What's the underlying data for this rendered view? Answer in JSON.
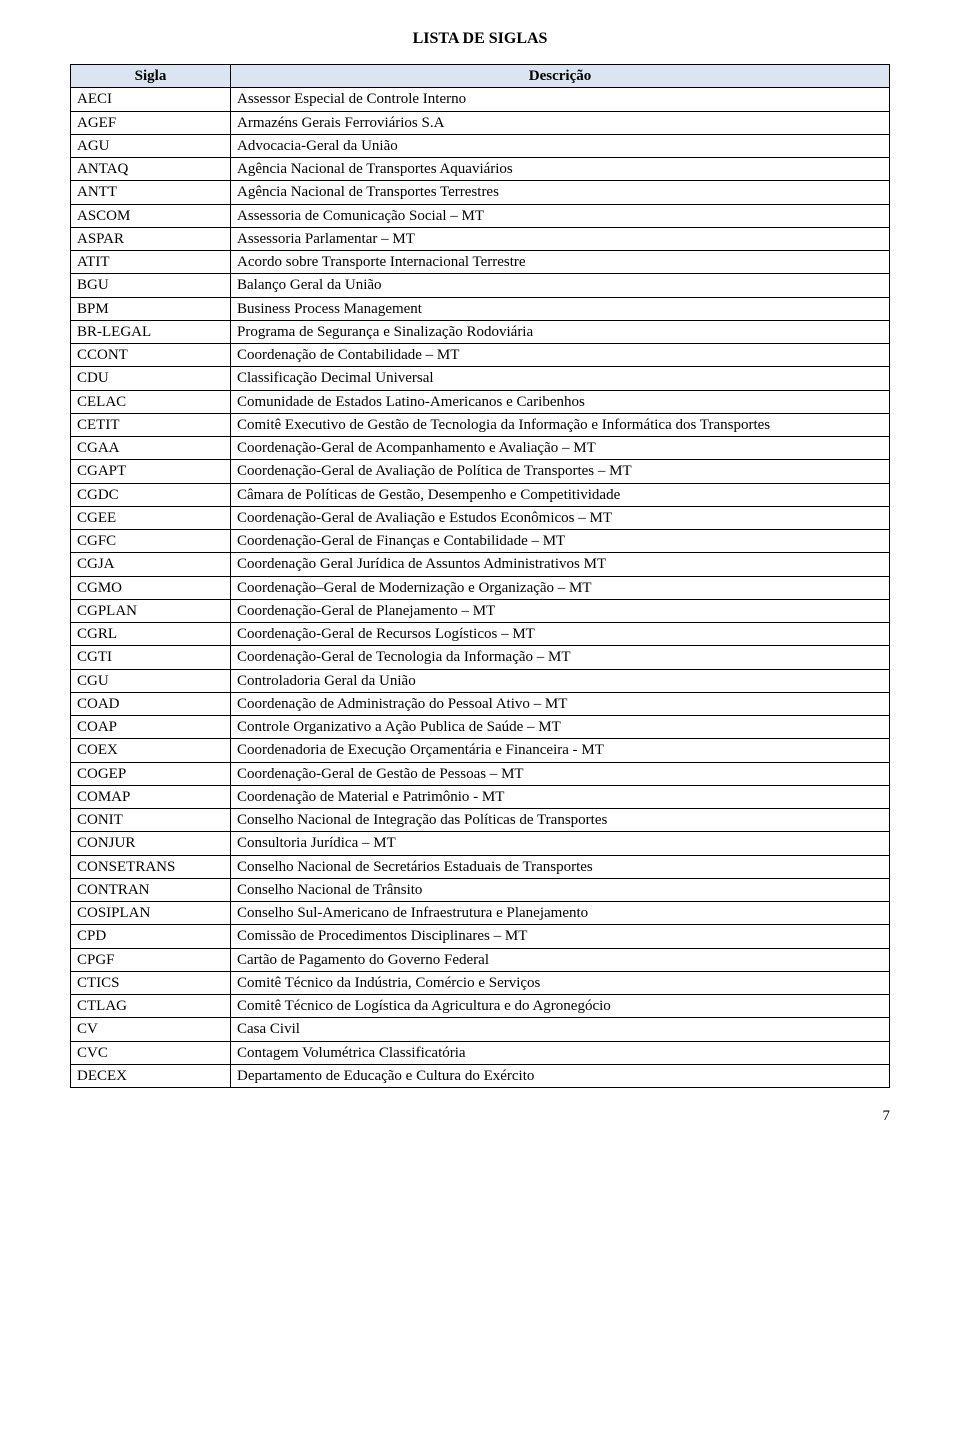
{
  "page_title": "LISTA DE SIGLAS",
  "headers": {
    "sigla": "Sigla",
    "descricao": "Descrição"
  },
  "page_number": "7",
  "rows": [
    {
      "s": "AECI",
      "d": "Assessor Especial de Controle Interno"
    },
    {
      "s": "AGEF",
      "d": "Armazéns Gerais Ferroviários S.A"
    },
    {
      "s": "AGU",
      "d": "Advocacia-Geral da União"
    },
    {
      "s": "ANTAQ",
      "d": "Agência Nacional de Transportes Aquaviários"
    },
    {
      "s": "ANTT",
      "d": "Agência Nacional de Transportes Terrestres"
    },
    {
      "s": "ASCOM",
      "d": "Assessoria de Comunicação Social – MT"
    },
    {
      "s": "ASPAR",
      "d": "Assessoria Parlamentar – MT"
    },
    {
      "s": "ATIT",
      "d": "Acordo sobre Transporte Internacional Terrestre"
    },
    {
      "s": "BGU",
      "d": "Balanço Geral da União"
    },
    {
      "s": "BPM",
      "d": "Business Process Management"
    },
    {
      "s": "BR-LEGAL",
      "d": "Programa de Segurança e Sinalização Rodoviária"
    },
    {
      "s": "CCONT",
      "d": "Coordenação de Contabilidade – MT"
    },
    {
      "s": "CDU",
      "d": "Classificação Decimal Universal"
    },
    {
      "s": "CELAC",
      "d": "Comunidade de Estados Latino-Americanos e Caribenhos"
    },
    {
      "s": "CETIT",
      "d": "Comitê Executivo de Gestão de Tecnologia da Informação e Informática dos Transportes"
    },
    {
      "s": "CGAA",
      "d": "Coordenação-Geral de Acompanhamento e Avaliação – MT"
    },
    {
      "s": "CGAPT",
      "d": "Coordenação-Geral de Avaliação de Política de Transportes – MT"
    },
    {
      "s": "CGDC",
      "d": "Câmara de Políticas de Gestão, Desempenho e Competitividade"
    },
    {
      "s": "CGEE",
      "d": "Coordenação-Geral de Avaliação e Estudos Econômicos – MT"
    },
    {
      "s": "CGFC",
      "d": "Coordenação-Geral de Finanças e Contabilidade – MT"
    },
    {
      "s": "CGJA",
      "d": "Coordenação Geral Jurídica de Assuntos Administrativos MT"
    },
    {
      "s": "CGMO",
      "d": "Coordenação–Geral de Modernização e Organização – MT"
    },
    {
      "s": "CGPLAN",
      "d": "Coordenação-Geral de Planejamento – MT"
    },
    {
      "s": "CGRL",
      "d": "Coordenação-Geral de Recursos Logísticos – MT"
    },
    {
      "s": "CGTI",
      "d": "Coordenação-Geral de Tecnologia da Informação – MT"
    },
    {
      "s": "CGU",
      "d": "Controladoria Geral da União"
    },
    {
      "s": "COAD",
      "d": "Coordenação de Administração do Pessoal Ativo – MT"
    },
    {
      "s": "COAP",
      "d": "Controle Organizativo a Ação Publica de Saúde – MT"
    },
    {
      "s": "COEX",
      "d": "Coordenadoria de Execução Orçamentária e Financeira - MT"
    },
    {
      "s": "COGEP",
      "d": "Coordenação-Geral de Gestão de Pessoas – MT"
    },
    {
      "s": "COMAP",
      "d": "Coordenação de Material e Patrimônio - MT"
    },
    {
      "s": "CONIT",
      "d": "Conselho Nacional de Integração das Políticas de Transportes"
    },
    {
      "s": "CONJUR",
      "d": "Consultoria Jurídica – MT"
    },
    {
      "s": "CONSETRANS",
      "d": "Conselho Nacional de Secretários Estaduais de Transportes"
    },
    {
      "s": "CONTRAN",
      "d": "Conselho Nacional de Trânsito"
    },
    {
      "s": "COSIPLAN",
      "d": "Conselho Sul-Americano de Infraestrutura e Planejamento"
    },
    {
      "s": "CPD",
      "d": "Comissão de Procedimentos Disciplinares – MT"
    },
    {
      "s": "CPGF",
      "d": "Cartão de Pagamento do Governo Federal"
    },
    {
      "s": "CTICS",
      "d": "Comitê Técnico da Indústria, Comércio e Serviços"
    },
    {
      "s": "CTLAG",
      "d": "Comitê Técnico de Logística da Agricultura e do Agronegócio"
    },
    {
      "s": "CV",
      "d": "Casa Civil"
    },
    {
      "s": "CVC",
      "d": "Contagem Volumétrica Classificatória"
    },
    {
      "s": "DECEX",
      "d": "Departamento de Educação e Cultura do Exército"
    }
  ]
}
